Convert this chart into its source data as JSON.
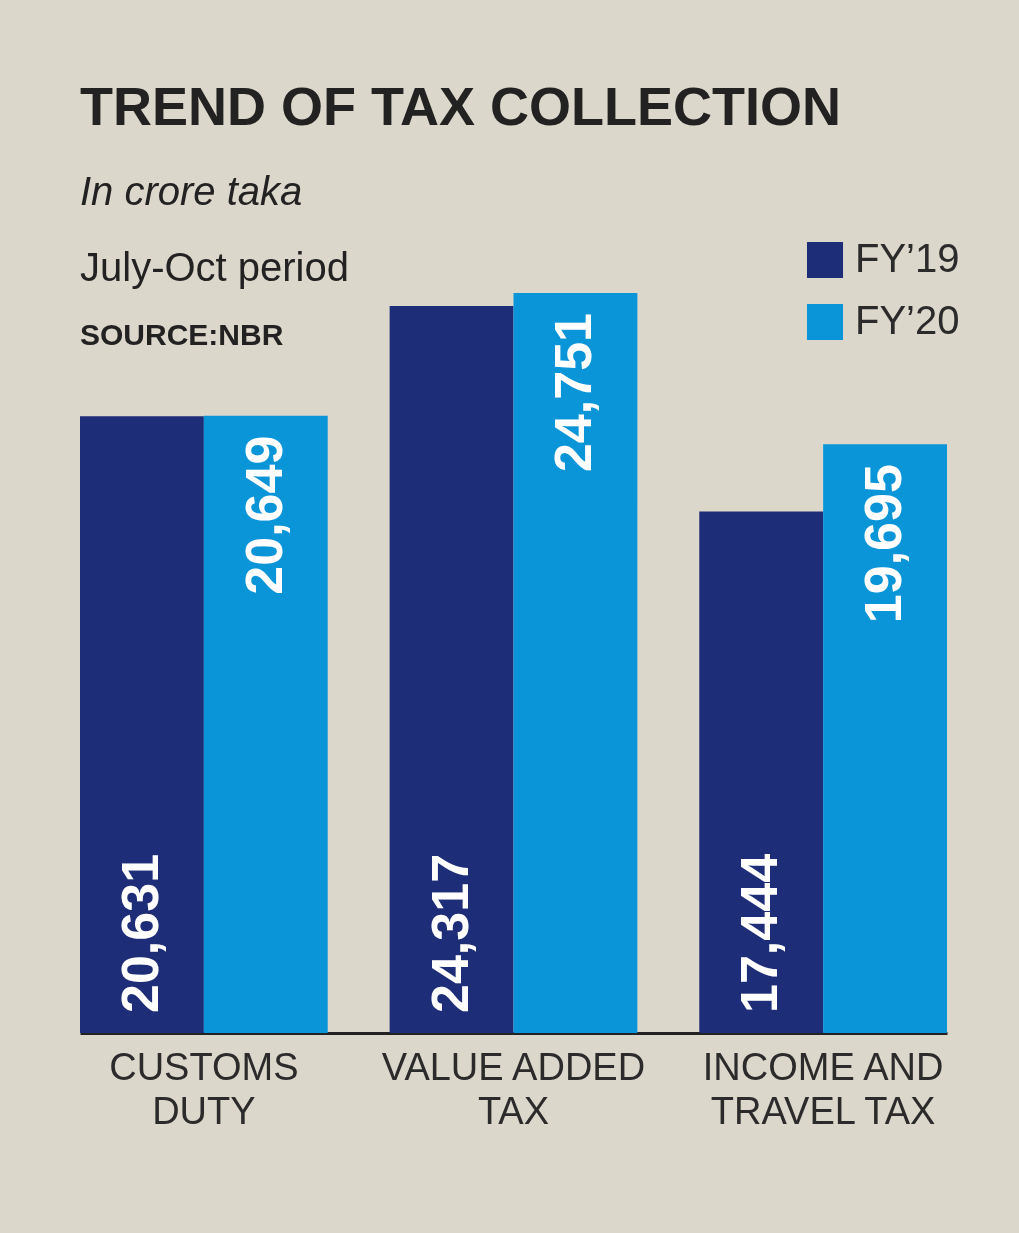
{
  "chart_data": {
    "type": "bar",
    "title": "TREND OF TAX COLLECTION",
    "subtitle": "In crore taka",
    "annotations": [
      "July-Oct period",
      "SOURCE:NBR"
    ],
    "categories": [
      "CUSTOMS DUTY",
      "VALUE ADDED TAX",
      "INCOME AND TRAVEL TAX"
    ],
    "series": [
      {
        "name": "FY’19",
        "color": "#1e2d78",
        "values": [
          20631,
          24317,
          17444
        ],
        "value_labels": [
          "20,631",
          "24,317",
          "17,444"
        ]
      },
      {
        "name": "FY’20",
        "color": "#0a95d9",
        "values": [
          20649,
          24751,
          19695
        ],
        "value_labels": [
          "20,649",
          "24,751",
          "19,695"
        ]
      }
    ],
    "legend": "top right"
  }
}
